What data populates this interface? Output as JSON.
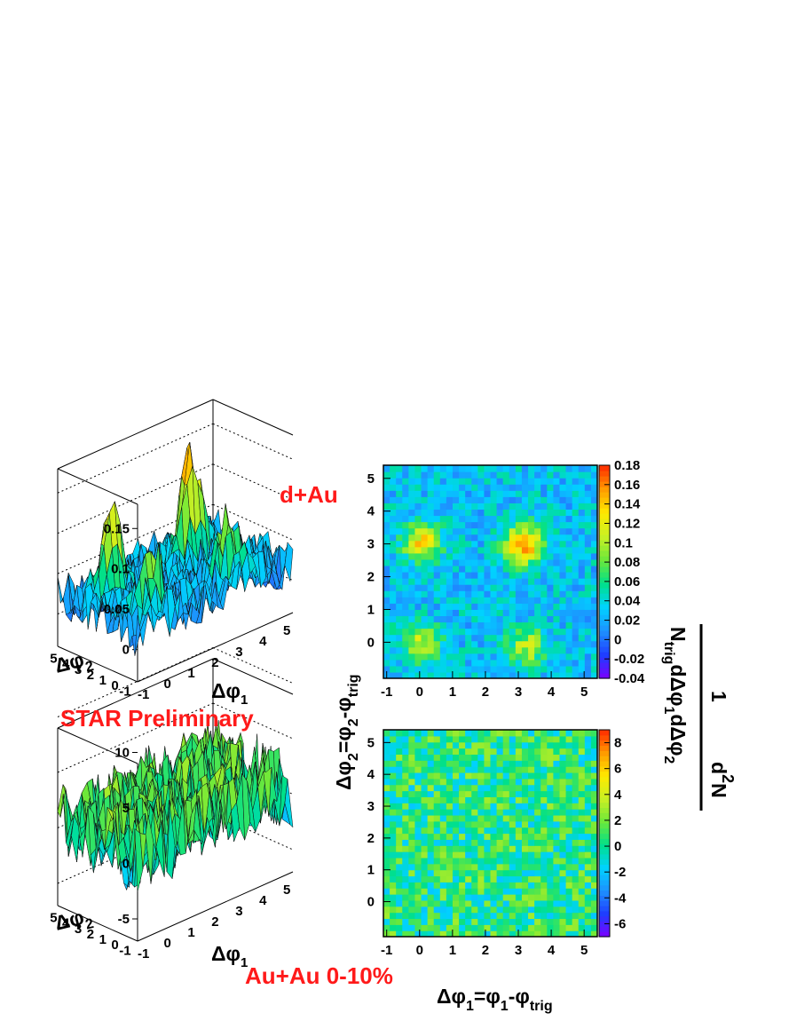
{
  "labels": {
    "dau": "d+Au",
    "star": "STAR Preliminary",
    "auau": "Au+Au 0-10%",
    "xaxis": "Δφ1=φ1-φtrig",
    "xaxis_parts": {
      "a": "Δφ",
      "b": "1",
      "c": "=φ",
      "d": "1",
      "e": "-φ",
      "f": "trig"
    },
    "yaxis_parts": {
      "a": "Δφ",
      "b": "2",
      "c": "=φ",
      "d": "2",
      "e": "-φ",
      "f": "trig"
    },
    "zaxis_num": "1",
    "zaxis_den_parts": {
      "a": "N",
      "b": "trig",
      "c": "dΔφ",
      "d": "1",
      "e": "dΔφ",
      "f": "2"
    },
    "zaxis_right_num": "d",
    "zaxis_right_sup": "2",
    "zaxis_right_N": "N",
    "surf_xlabel": {
      "a": "Δφ",
      "b": "1"
    },
    "surf_ylabel": {
      "a": "Δφ",
      "b": "2"
    }
  },
  "colors": {
    "label_red": "#ff1a1a",
    "palette": [
      "#7a00ff",
      "#1f3dff",
      "#1e90ff",
      "#00d2ff",
      "#00e08a",
      "#6be83a",
      "#c8f024",
      "#ffea00",
      "#ff9b00",
      "#ff2a00"
    ]
  },
  "chart_data": [
    {
      "panel": "d+Au surface",
      "type": "heatmap",
      "style": "3d-surface",
      "x_ticks": [
        "-1",
        "0",
        "1",
        "2",
        "3",
        "4",
        "5"
      ],
      "y_ticks": [
        "-1",
        "0",
        "1",
        "2",
        "3",
        "4",
        "5"
      ],
      "z_ticks": [
        "0",
        "0.05",
        "0.1",
        "0.15"
      ],
      "xlim": [
        -1.1,
        5.4
      ],
      "ylim": [
        -1.1,
        5.4
      ],
      "zlim": [
        -0.04,
        0.18
      ],
      "peaks": [
        {
          "x": 0.0,
          "y": 3.1,
          "z": 0.12
        },
        {
          "x": 3.2,
          "y": 3.0,
          "z": 0.155
        },
        {
          "x": 0.0,
          "y": 0.0,
          "z": 0.1
        },
        {
          "x": 3.2,
          "y": -0.1,
          "z": 0.095
        }
      ]
    },
    {
      "panel": "d+Au colormap",
      "type": "heatmap",
      "x_ticks": [
        "-1",
        "0",
        "1",
        "2",
        "3",
        "4",
        "5"
      ],
      "y_ticks": [
        "0",
        "1",
        "2",
        "3",
        "4",
        "5"
      ],
      "xlim": [
        -1.1,
        5.4
      ],
      "ylim": [
        -1.1,
        5.4
      ],
      "colorbar_ticks": [
        "0.18",
        "0.16",
        "0.14",
        "0.12",
        "0.1",
        "0.08",
        "0.06",
        "0.04",
        "0.02",
        "0",
        "-0.02",
        "-0.04"
      ],
      "zlim": [
        -0.04,
        0.18
      ],
      "peaks": [
        {
          "x": 0.0,
          "y": 3.1,
          "z": 0.13
        },
        {
          "x": 3.2,
          "y": 3.0,
          "z": 0.16
        },
        {
          "x": 0.0,
          "y": -0.1,
          "z": 0.11
        },
        {
          "x": 3.3,
          "y": -0.2,
          "z": 0.1
        }
      ]
    },
    {
      "panel": "Au+Au 0-10% surface",
      "type": "heatmap",
      "style": "3d-surface",
      "x_ticks": [
        "-1",
        "0",
        "1",
        "2",
        "3",
        "4",
        "5"
      ],
      "y_ticks": [
        "-1",
        "0",
        "1",
        "2",
        "3",
        "4",
        "5"
      ],
      "z_ticks": [
        "-5",
        "0",
        "5",
        "10"
      ],
      "xlim": [
        -1.1,
        5.4
      ],
      "ylim": [
        -1.1,
        5.4
      ],
      "zlim": [
        -7,
        9
      ]
    },
    {
      "panel": "Au+Au 0-10% colormap",
      "type": "heatmap",
      "x_ticks": [
        "-1",
        "0",
        "1",
        "2",
        "3",
        "4",
        "5"
      ],
      "y_ticks": [
        "0",
        "1",
        "2",
        "3",
        "4",
        "5"
      ],
      "xlim": [
        -1.1,
        5.4
      ],
      "ylim": [
        -1.1,
        5.4
      ],
      "colorbar_ticks": [
        "8",
        "6",
        "4",
        "2",
        "0",
        "-2",
        "-4",
        "-6"
      ],
      "zlim": [
        -7,
        9
      ]
    }
  ]
}
